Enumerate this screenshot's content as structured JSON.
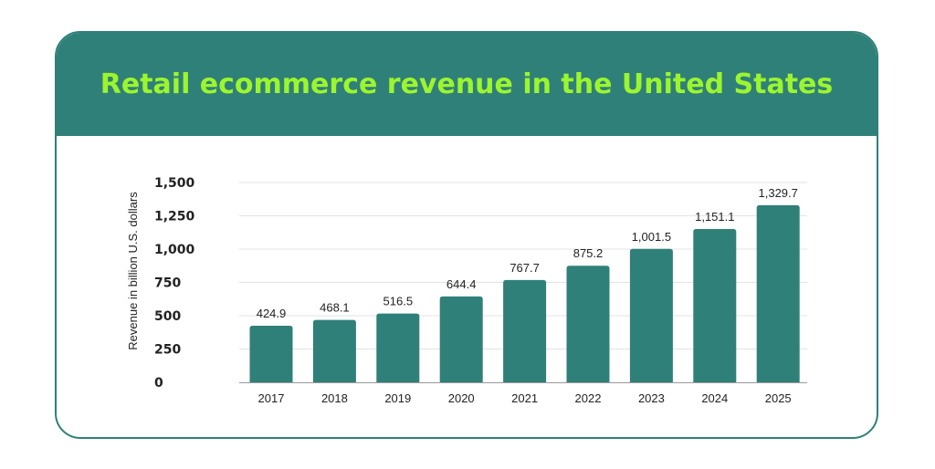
{
  "header": {
    "title": "Retail ecommerce revenue in the United States"
  },
  "colors": {
    "header_bg": "#2f8079",
    "title_text": "#9cf52d",
    "bar": "#2f8079",
    "border": "#2f8079"
  },
  "chart_data": {
    "type": "bar",
    "title": "Retail ecommerce revenue in the United States",
    "xlabel": "",
    "ylabel": "Revenue in billion U.S. dollars",
    "ylim": [
      0,
      1500
    ],
    "yticks": [
      0,
      250,
      500,
      750,
      1000,
      1250,
      1500
    ],
    "ytick_labels": [
      "0",
      "250",
      "500",
      "750",
      "1,000",
      "1,250",
      "1,500"
    ],
    "grid": true,
    "categories": [
      "2017",
      "2018",
      "2019",
      "2020",
      "2021",
      "2022",
      "2023",
      "2024",
      "2025"
    ],
    "values": [
      424.9,
      468.1,
      516.5,
      644.4,
      767.7,
      875.2,
      1001.5,
      1151.1,
      1329.7
    ],
    "value_labels": [
      "424.9",
      "468.1",
      "516.5",
      "644.4",
      "767.7",
      "875.2",
      "1,001.5",
      "1,151.1",
      "1,329.7"
    ]
  }
}
